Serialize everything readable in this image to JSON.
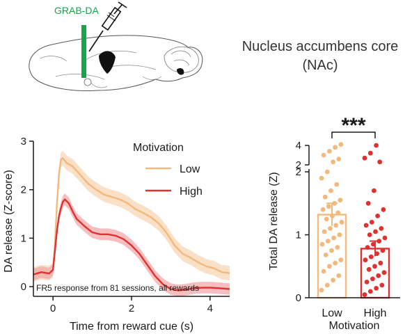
{
  "colors": {
    "low": "#f2b87c",
    "low_band": "#f8d5b3",
    "high": "#e03131",
    "high_band": "#f3a8a8",
    "grab": "#17a44d",
    "axis": "#1a1a1a"
  },
  "schematic": {
    "injection_label": "GRAB-DA",
    "icons": [
      "brain-sagittal-icon",
      "syringe-icon",
      "fiber-optic-icon"
    ]
  },
  "title": {
    "line1": "Nucleus accumbens core",
    "line2": "(NAc)"
  },
  "chart_data": [
    {
      "type": "line",
      "title": "",
      "xlabel": "Time from reward cue (s)",
      "ylabel": "DA release (Z-score)",
      "xlim": [
        -0.5,
        4.5
      ],
      "ylim": [
        -0.2,
        3.0
      ],
      "xticks": [
        0,
        2,
        4
      ],
      "yticks": [
        0,
        1,
        2,
        3
      ],
      "legend_title": "Motivation",
      "legend_position": "top-right",
      "annotation": "FR5 response from 81 sessions, all rewards",
      "series": [
        {
          "name": "Low",
          "color": "#f2b87c",
          "band_halfwidth": 0.15,
          "x": [
            -0.5,
            -0.3,
            -0.1,
            0.0,
            0.05,
            0.1,
            0.15,
            0.2,
            0.25,
            0.35,
            0.5,
            0.7,
            0.9,
            1.1,
            1.3,
            1.5,
            1.7,
            1.9,
            2.1,
            2.3,
            2.5,
            2.7,
            2.9,
            3.1,
            3.3,
            3.5,
            3.7,
            3.9,
            4.1,
            4.3,
            4.5
          ],
          "y": [
            0.25,
            0.3,
            0.28,
            0.35,
            0.9,
            1.7,
            2.3,
            2.62,
            2.65,
            2.55,
            2.48,
            2.3,
            2.12,
            2.0,
            1.9,
            1.85,
            1.8,
            1.72,
            1.6,
            1.52,
            1.43,
            1.3,
            1.1,
            0.85,
            0.68,
            0.6,
            0.5,
            0.42,
            0.38,
            0.3,
            0.28
          ]
        },
        {
          "name": "High",
          "color": "#e03131",
          "band_halfwidth": 0.12,
          "x": [
            -0.5,
            -0.3,
            -0.1,
            0.0,
            0.05,
            0.1,
            0.15,
            0.2,
            0.25,
            0.3,
            0.4,
            0.5,
            0.6,
            0.8,
            1.0,
            1.2,
            1.4,
            1.6,
            1.8,
            2.0,
            2.2,
            2.4,
            2.6,
            2.8,
            3.0,
            3.2,
            3.4,
            3.6,
            3.8,
            4.0,
            4.2,
            4.5
          ],
          "y": [
            0.25,
            0.3,
            0.27,
            0.35,
            0.75,
            1.15,
            1.45,
            1.62,
            1.75,
            1.8,
            1.72,
            1.55,
            1.4,
            1.25,
            1.12,
            1.08,
            1.08,
            1.05,
            0.98,
            0.85,
            0.68,
            0.45,
            0.22,
            0.05,
            -0.05,
            -0.08,
            -0.06,
            -0.03,
            -0.02,
            -0.02,
            -0.03,
            -0.05
          ]
        }
      ]
    },
    {
      "type": "bar",
      "title": "",
      "xlabel": "Motivation",
      "ylabel": "Total DA release (Z)",
      "categories": [
        "Low",
        "High"
      ],
      "values": [
        1.32,
        0.78
      ],
      "sem": [
        0.18,
        0.12
      ],
      "yscale": "broken",
      "ylim": [
        0,
        4
      ],
      "yticks_lower": [
        0,
        1,
        2
      ],
      "yticks_upper": [
        2,
        4
      ],
      "significance": "***",
      "points": [
        [
          0.12,
          0.2,
          0.28,
          0.35,
          0.42,
          0.5,
          0.55,
          0.6,
          0.68,
          0.75,
          0.8,
          0.85,
          0.9,
          0.95,
          1.0,
          1.05,
          1.1,
          1.15,
          1.2,
          1.25,
          1.3,
          1.35,
          1.4,
          1.45,
          1.5,
          1.55,
          1.6,
          1.7,
          1.8,
          1.9,
          2.0,
          2.3,
          2.6,
          3.0,
          3.4,
          3.8,
          4.1
        ],
        [
          0.05,
          0.1,
          0.15,
          0.2,
          0.25,
          0.3,
          0.35,
          0.4,
          0.45,
          0.5,
          0.55,
          0.6,
          0.65,
          0.7,
          0.75,
          0.8,
          0.85,
          0.9,
          0.95,
          1.0,
          1.05,
          1.1,
          1.15,
          1.2,
          1.3,
          1.4,
          1.5,
          1.7,
          2.3,
          2.7,
          3.2,
          4.0
        ]
      ]
    }
  ]
}
